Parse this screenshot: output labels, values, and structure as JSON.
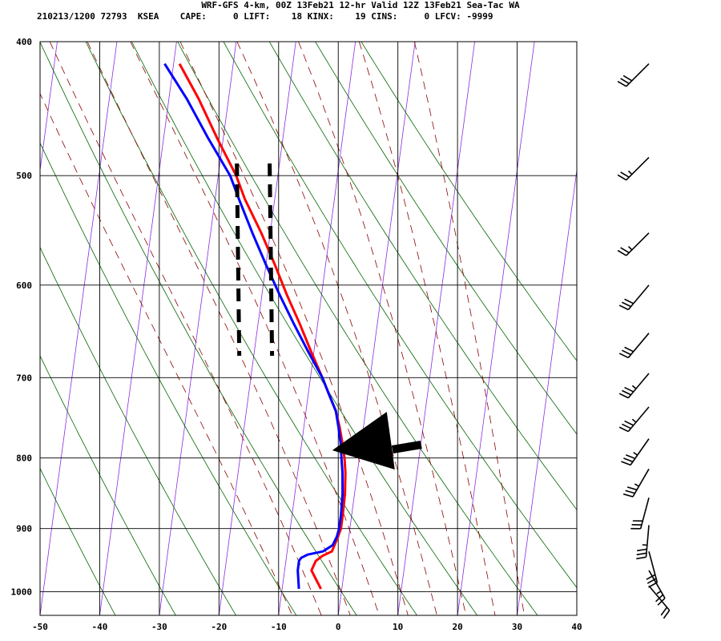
{
  "header": {
    "title": "WRF-GFS 4-km, 00Z 13Feb21 12-hr Valid 12Z 13Feb21 Sea-Tac WA",
    "stats": "210213/1200 72793  KSEA    CAPE:     0 LIFT:    18 KINX:    19 CINS:     0 LFCV: -9999"
  },
  "chart_data": {
    "type": "skew-t",
    "title": "WRF-GFS 4-km, 00Z 13Feb21 12-hr Valid 12Z 13Feb21 Sea-Tac WA",
    "xlabel": "",
    "ylabel": "",
    "x_ticks": [
      -50,
      -40,
      -30,
      -20,
      -10,
      0,
      10,
      20,
      30,
      40
    ],
    "p_ticks": [
      400,
      500,
      600,
      700,
      800,
      900,
      1000
    ],
    "p_range": [
      400,
      1040
    ],
    "skew_degC_per_pixel": 0.018,
    "temperature_series": {
      "name": "",
      "color": "#ff0000",
      "pressure": [
        995,
        980,
        965,
        950,
        942,
        935,
        925,
        912,
        900,
        880,
        850,
        820,
        800,
        780,
        760,
        740,
        720,
        700,
        670,
        640,
        610,
        580,
        550,
        520,
        500,
        470,
        440,
        415
      ],
      "temperature": [
        -3.5,
        -4.5,
        -5.5,
        -5.0,
        -4.0,
        -2.5,
        -2.2,
        -1.8,
        -1.5,
        -1.5,
        -1.6,
        -2.0,
        -2.5,
        -3.2,
        -4.0,
        -5.0,
        -6.5,
        -8.0,
        -10.5,
        -13.0,
        -15.8,
        -18.5,
        -21.5,
        -25.0,
        -27.0,
        -31.0,
        -35.0,
        -39.0
      ]
    },
    "dewpoint_series": {
      "name": "",
      "color": "#0000ff",
      "pressure": [
        995,
        980,
        965,
        950,
        945,
        940,
        935,
        925,
        912,
        900,
        880,
        850,
        820,
        800,
        780,
        760,
        740,
        720,
        700,
        670,
        640,
        610,
        580,
        550,
        520,
        500,
        470,
        440,
        415
      ],
      "temperature": [
        -7.2,
        -7.5,
        -7.8,
        -7.8,
        -7.5,
        -6.5,
        -4.0,
        -2.5,
        -2.0,
        -1.8,
        -1.8,
        -2.0,
        -2.5,
        -3.0,
        -3.5,
        -4.2,
        -5.0,
        -6.5,
        -8.0,
        -11.0,
        -14.0,
        -17.0,
        -20.0,
        -23.0,
        -26.0,
        -28.0,
        -32.5,
        -37.0,
        -41.5
      ]
    },
    "isotherms": [
      -100,
      -90,
      -80,
      -70,
      -60,
      -50,
      -40,
      -30,
      -20,
      -10,
      0,
      10,
      20,
      30,
      40
    ],
    "dry_adiabats_theta_C": [
      -40,
      -30,
      -20,
      -10,
      0,
      10,
      20,
      30,
      40,
      50,
      60,
      70
    ],
    "moist_adiabats_thetaw_C": [
      -10,
      -5,
      0,
      5,
      10,
      15,
      20,
      25,
      30
    ],
    "wind_barbs": [
      {
        "p": 415,
        "dir": 225,
        "spd": 30
      },
      {
        "p": 485,
        "dir": 225,
        "spd": 25
      },
      {
        "p": 550,
        "dir": 225,
        "spd": 25
      },
      {
        "p": 600,
        "dir": 220,
        "spd": 30
      },
      {
        "p": 650,
        "dir": 220,
        "spd": 30
      },
      {
        "p": 695,
        "dir": 220,
        "spd": 35
      },
      {
        "p": 735,
        "dir": 220,
        "spd": 35
      },
      {
        "p": 775,
        "dir": 215,
        "spd": 35
      },
      {
        "p": 815,
        "dir": 210,
        "spd": 35
      },
      {
        "p": 855,
        "dir": 195,
        "spd": 30
      },
      {
        "p": 895,
        "dir": 185,
        "spd": 35
      },
      {
        "p": 935,
        "dir": 165,
        "spd": 30
      },
      {
        "p": 965,
        "dir": 150,
        "spd": 25
      },
      {
        "p": 990,
        "dir": 140,
        "spd": 20
      }
    ],
    "dashed_bars": [
      {
        "x_at_base": -17.0,
        "p_top": 490,
        "p_bottom": 675
      },
      {
        "x_at_base": -11.5,
        "p_top": 490,
        "p_bottom": 675
      }
    ],
    "annotation_arrow": {
      "type": "arrow",
      "target_x_at_base": -1.0,
      "target_p": 790
    },
    "colors": {
      "isotherm": "#8a2be2",
      "dry_adiabat": "#006400",
      "moist_adiabat": "#8b0000",
      "grid": "#000000"
    }
  }
}
